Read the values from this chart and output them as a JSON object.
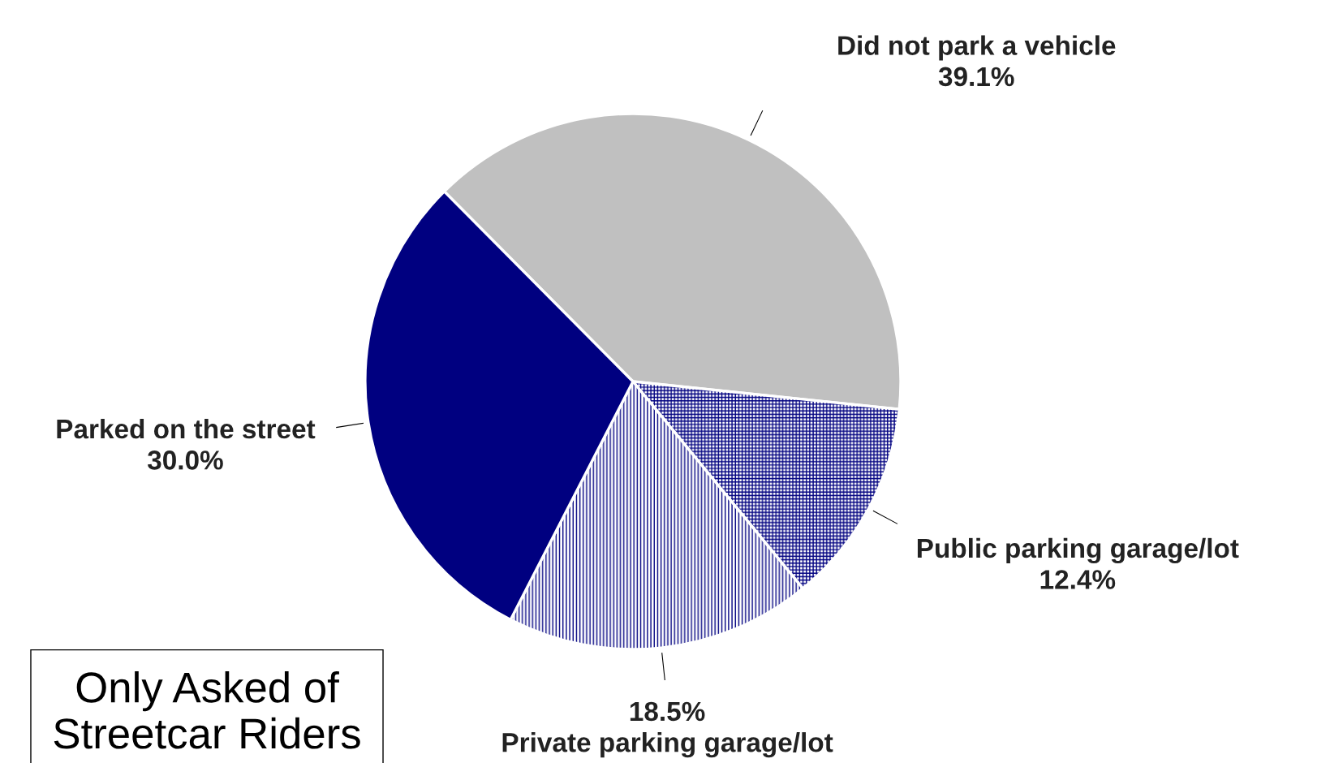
{
  "chart_data": {
    "type": "pie",
    "categories": [
      "Did not park a vehicle",
      "Public parking garage/lot",
      "Private parking garage/lot",
      "Parked on the street"
    ],
    "values": [
      39.1,
      12.4,
      18.5,
      30.0
    ],
    "colors": [
      "#c0c0c0",
      "#ffffff",
      "#ffffff",
      "#000080"
    ],
    "value_labels": [
      "39.1%",
      "12.4%",
      "18.5%",
      "30.0%"
    ],
    "annotations": [
      "Only Asked of\nStreetcar Riders"
    ],
    "legend": false
  }
}
